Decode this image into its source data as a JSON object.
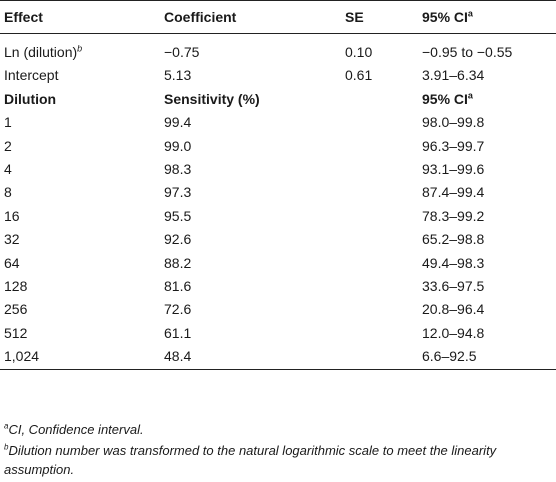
{
  "table": {
    "headers": {
      "effect": "Effect",
      "coefficient": "Coefficient",
      "se": "SE",
      "ci": "95% CI",
      "ci_sup": "a"
    },
    "regression_rows": [
      {
        "effect": "Ln (dilution)",
        "effect_sup": "b",
        "coefficient": "−0.75",
        "se": "0.10",
        "ci": "−0.95 to −0.55"
      },
      {
        "effect": "Intercept",
        "effect_sup": "",
        "coefficient": "5.13",
        "se": "0.61",
        "ci": "3.91–6.34"
      }
    ],
    "subheaders": {
      "dilution": "Dilution",
      "sensitivity": "Sensitivity (%)",
      "ci": "95% CI",
      "ci_sup": "a"
    },
    "dilution_rows": [
      {
        "dilution": "1",
        "sensitivity": "99.4",
        "ci": "98.0–99.8"
      },
      {
        "dilution": "2",
        "sensitivity": "99.0",
        "ci": "96.3–99.7"
      },
      {
        "dilution": "4",
        "sensitivity": "98.3",
        "ci": "93.1–99.6"
      },
      {
        "dilution": "8",
        "sensitivity": "97.3",
        "ci": "87.4–99.4"
      },
      {
        "dilution": "16",
        "sensitivity": "95.5",
        "ci": "78.3–99.2"
      },
      {
        "dilution": "32",
        "sensitivity": "92.6",
        "ci": "65.2–98.8"
      },
      {
        "dilution": "64",
        "sensitivity": "88.2",
        "ci": "49.4–98.3"
      },
      {
        "dilution": "128",
        "sensitivity": "81.6",
        "ci": "33.6–97.5"
      },
      {
        "dilution": "256",
        "sensitivity": "72.6",
        "ci": "20.8–96.4"
      },
      {
        "dilution": "512",
        "sensitivity": "61.1",
        "ci": "12.0–94.8"
      },
      {
        "dilution": "1,024",
        "sensitivity": "48.4",
        "ci": "6.6–92.5"
      }
    ]
  },
  "footnotes": [
    {
      "mark": "a",
      "text": "CI, Confidence interval."
    },
    {
      "mark": "b",
      "text": "Dilution number was transformed to the natural logarithmic scale to meet the linearity assumption."
    }
  ]
}
